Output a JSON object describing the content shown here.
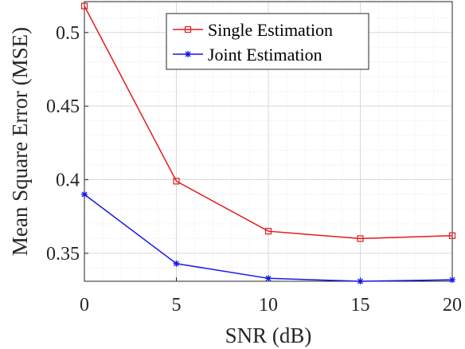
{
  "chart_data": {
    "type": "line",
    "xlabel": "SNR (dB)",
    "ylabel": "Mean Square Error (MSE)",
    "x": [
      0,
      5,
      10,
      15,
      20
    ],
    "xticks": [
      0,
      5,
      10,
      15,
      20
    ],
    "yticks": [
      0.35,
      0.4,
      0.45,
      0.5
    ],
    "xlim": [
      0,
      20
    ],
    "ylim": [
      0.331,
      0.521
    ],
    "grid": true,
    "minor_grid": true,
    "legend_position": "top-right",
    "series": [
      {
        "name": "Single Estimation",
        "values": [
          0.518,
          0.399,
          0.365,
          0.36,
          0.362
        ],
        "color": "#e31a1c",
        "marker": "square"
      },
      {
        "name": "Joint Estimation",
        "values": [
          0.39,
          0.343,
          0.333,
          0.331,
          0.332
        ],
        "color": "#1515e6",
        "marker": "star"
      }
    ]
  }
}
